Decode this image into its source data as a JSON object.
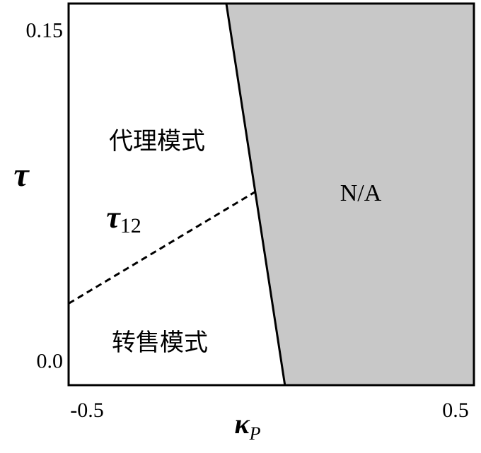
{
  "chart_data": {
    "type": "line",
    "x_label": {
      "symbol": "κ",
      "subscript": "P"
    },
    "y_label": "τ",
    "xlim": [
      -0.55,
      0.55
    ],
    "ylim": [
      -0.01,
      0.163
    ],
    "xticks": [
      -0.5,
      0.5
    ],
    "yticks": [
      {
        "value": 0,
        "label": "0.0"
      },
      0.15
    ],
    "region_color": "#c8c8c8",
    "series": [
      {
        "x": [
          -0.122,
          0.037
        ],
        "values": [
          0.163,
          -0.01
        ],
        "color": "#000000",
        "dashed": false
      },
      {
        "x": [
          -0.55,
          -0.045
        ],
        "values": [
          0.027,
          0.0775
        ],
        "color": "#000000",
        "dashed": true
      }
    ],
    "annotations": [
      "代理模式",
      "转售模式",
      "N/A"
    ],
    "line_label": {
      "symbol": "τ",
      "subscript": "12"
    }
  }
}
